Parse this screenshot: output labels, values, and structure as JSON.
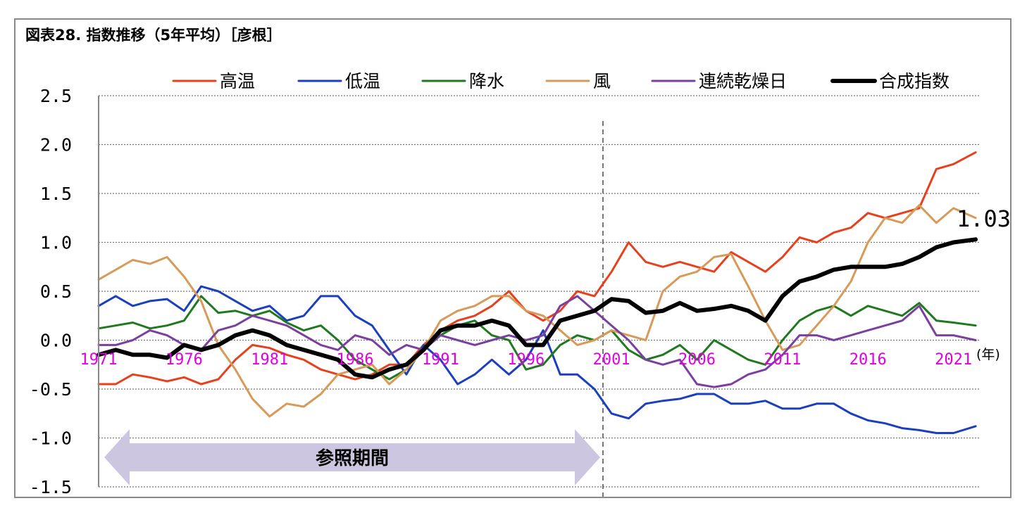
{
  "chart_data": {
    "type": "line",
    "title": "図表28. 指数推移（5年平均）［彦根］",
    "xlabel": "(年)",
    "ylabel": "",
    "ylim": [
      -1.5,
      2.5
    ],
    "xlim": [
      1971,
      2022.5
    ],
    "yticks": [
      "2.5",
      "2.0",
      "1.5",
      "1.0",
      "0.5",
      "0.0",
      "-0.5",
      "-1.0",
      "-1.5"
    ],
    "xticks": [
      "1971",
      "1976",
      "1981",
      "1986",
      "1991",
      "1996",
      "2001",
      "2006",
      "2011",
      "2016",
      "2021"
    ],
    "grid": true,
    "legend_position": "top",
    "reference_period": {
      "label": "参照期間",
      "start": 1971,
      "end": 2000.5
    },
    "divider_year": 2000.5,
    "end_label": {
      "text": "1.03",
      "series": "合成指数"
    },
    "series": [
      {
        "name": "高温",
        "color": "#e8401c",
        "width": 3,
        "x": [
          1971,
          1972,
          1973,
          1974,
          1975,
          1976,
          1977,
          1978,
          1979,
          1980,
          1981,
          1982,
          1983,
          1984,
          1985,
          1986,
          1987,
          1988,
          1989,
          1990,
          1991,
          1992,
          1993,
          1994,
          1995,
          1996,
          1997,
          1998,
          1999,
          2000,
          2001,
          2002,
          2003,
          2004,
          2005,
          2006,
          2007,
          2008,
          2009,
          2010,
          2011,
          2012,
          2013,
          2014,
          2015,
          2016,
          2017,
          2018,
          2019,
          2020,
          2021,
          2022.3
        ],
        "y": [
          -0.45,
          -0.45,
          -0.35,
          -0.38,
          -0.42,
          -0.38,
          -0.45,
          -0.4,
          -0.2,
          -0.05,
          -0.08,
          -0.15,
          -0.2,
          -0.3,
          -0.35,
          -0.4,
          -0.35,
          -0.25,
          -0.25,
          -0.05,
          0.1,
          0.2,
          0.25,
          0.35,
          0.5,
          0.3,
          0.2,
          0.3,
          0.5,
          0.45,
          0.7,
          1.0,
          0.8,
          0.75,
          0.8,
          0.75,
          0.7,
          0.9,
          0.8,
          0.7,
          0.85,
          1.05,
          1.0,
          1.1,
          1.15,
          1.3,
          1.25,
          1.3,
          1.35,
          1.75,
          1.8,
          1.92
        ]
      },
      {
        "name": "低温",
        "color": "#1a3fbf",
        "width": 3,
        "x": [
          1971,
          1972,
          1973,
          1974,
          1975,
          1976,
          1977,
          1978,
          1979,
          1980,
          1981,
          1982,
          1983,
          1984,
          1985,
          1986,
          1987,
          1988,
          1989,
          1990,
          1991,
          1992,
          1993,
          1994,
          1995,
          1996,
          1997,
          1998,
          1999,
          2000,
          2001,
          2002,
          2003,
          2004,
          2005,
          2006,
          2007,
          2008,
          2009,
          2010,
          2011,
          2012,
          2013,
          2014,
          2015,
          2016,
          2017,
          2018,
          2019,
          2020,
          2021,
          2022.3
        ],
        "y": [
          0.35,
          0.45,
          0.35,
          0.4,
          0.42,
          0.3,
          0.55,
          0.5,
          0.4,
          0.3,
          0.35,
          0.2,
          0.25,
          0.45,
          0.45,
          0.25,
          0.15,
          -0.1,
          -0.35,
          -0.05,
          -0.2,
          -0.45,
          -0.35,
          -0.2,
          -0.35,
          -0.2,
          0.1,
          -0.35,
          -0.35,
          -0.5,
          -0.75,
          -0.8,
          -0.65,
          -0.62,
          -0.6,
          -0.55,
          -0.55,
          -0.65,
          -0.65,
          -0.62,
          -0.7,
          -0.7,
          -0.65,
          -0.65,
          -0.75,
          -0.82,
          -0.85,
          -0.9,
          -0.92,
          -0.95,
          -0.95,
          -0.88
        ]
      },
      {
        "name": "降水",
        "color": "#1f7a1f",
        "width": 3,
        "x": [
          1971,
          1972,
          1973,
          1974,
          1975,
          1976,
          1977,
          1978,
          1979,
          1980,
          1981,
          1982,
          1983,
          1984,
          1985,
          1986,
          1987,
          1988,
          1989,
          1990,
          1991,
          1992,
          1993,
          1994,
          1995,
          1996,
          1997,
          1998,
          1999,
          2000,
          2001,
          2002,
          2003,
          2004,
          2005,
          2006,
          2007,
          2008,
          2009,
          2010,
          2011,
          2012,
          2013,
          2014,
          2015,
          2016,
          2017,
          2018,
          2019,
          2020,
          2021,
          2022.3
        ],
        "y": [
          0.12,
          0.15,
          0.18,
          0.12,
          0.15,
          0.2,
          0.45,
          0.28,
          0.3,
          0.25,
          0.3,
          0.18,
          0.1,
          0.15,
          0.0,
          -0.2,
          -0.3,
          -0.4,
          -0.3,
          -0.1,
          0.05,
          0.15,
          0.2,
          0.05,
          0.0,
          -0.3,
          -0.25,
          -0.05,
          0.05,
          0.0,
          0.1,
          -0.1,
          -0.2,
          -0.15,
          -0.05,
          -0.2,
          0.0,
          -0.1,
          -0.2,
          -0.25,
          0.0,
          0.2,
          0.3,
          0.35,
          0.25,
          0.35,
          0.3,
          0.25,
          0.38,
          0.2,
          0.18,
          0.15
        ]
      },
      {
        "name": "風",
        "color": "#d89a58",
        "width": 3,
        "x": [
          1971,
          1972,
          1973,
          1974,
          1975,
          1976,
          1977,
          1978,
          1979,
          1980,
          1981,
          1982,
          1983,
          1984,
          1985,
          1986,
          1987,
          1988,
          1989,
          1990,
          1991,
          1992,
          1993,
          1994,
          1995,
          1996,
          1997,
          1998,
          1999,
          2000,
          2001,
          2002,
          2003,
          2004,
          2005,
          2006,
          2007,
          2008,
          2009,
          2010,
          2011,
          2012,
          2013,
          2014,
          2015,
          2016,
          2017,
          2018,
          2019,
          2020,
          2021,
          2022.3
        ],
        "y": [
          0.62,
          0.72,
          0.82,
          0.78,
          0.85,
          0.65,
          0.4,
          -0.05,
          -0.3,
          -0.6,
          -0.78,
          -0.65,
          -0.68,
          -0.55,
          -0.35,
          -0.3,
          -0.25,
          -0.45,
          -0.3,
          -0.1,
          0.2,
          0.3,
          0.35,
          0.45,
          0.45,
          0.3,
          0.25,
          0.1,
          -0.05,
          0.0,
          0.1,
          0.05,
          0.0,
          0.5,
          0.65,
          0.7,
          0.85,
          0.88,
          0.55,
          0.2,
          -0.1,
          -0.05,
          0.15,
          0.35,
          0.6,
          1.0,
          1.25,
          1.2,
          1.38,
          1.2,
          1.35,
          1.25
        ]
      },
      {
        "name": "連続乾燥日",
        "color": "#7b3fa0",
        "width": 3,
        "x": [
          1971,
          1972,
          1973,
          1974,
          1975,
          1976,
          1977,
          1978,
          1979,
          1980,
          1981,
          1982,
          1983,
          1984,
          1985,
          1986,
          1987,
          1988,
          1989,
          1990,
          1991,
          1992,
          1993,
          1994,
          1995,
          1996,
          1997,
          1998,
          1999,
          2000,
          2001,
          2002,
          2003,
          2004,
          2005,
          2006,
          2007,
          2008,
          2009,
          2010,
          2011,
          2012,
          2013,
          2014,
          2015,
          2016,
          2017,
          2018,
          2019,
          2020,
          2021,
          2022.3
        ],
        "y": [
          -0.05,
          -0.05,
          0.0,
          0.1,
          0.05,
          -0.05,
          -0.1,
          0.1,
          0.15,
          0.25,
          0.2,
          0.15,
          0.05,
          -0.05,
          -0.1,
          0.05,
          0.0,
          -0.15,
          -0.05,
          -0.1,
          0.05,
          0.0,
          -0.05,
          0.0,
          0.05,
          0.0,
          0.05,
          0.35,
          0.45,
          0.3,
          0.15,
          0.0,
          -0.2,
          -0.25,
          -0.2,
          -0.45,
          -0.48,
          -0.45,
          -0.35,
          -0.3,
          -0.15,
          0.05,
          0.05,
          0.0,
          0.05,
          0.1,
          0.15,
          0.2,
          0.35,
          0.05,
          0.05,
          0.0
        ]
      },
      {
        "name": "合成指数",
        "color": "#000000",
        "width": 6,
        "x": [
          1971,
          1972,
          1973,
          1974,
          1975,
          1976,
          1977,
          1978,
          1979,
          1980,
          1981,
          1982,
          1983,
          1984,
          1985,
          1986,
          1987,
          1988,
          1989,
          1990,
          1991,
          1992,
          1993,
          1994,
          1995,
          1996,
          1997,
          1998,
          1999,
          2000,
          2001,
          2002,
          2003,
          2004,
          2005,
          2006,
          2007,
          2008,
          2009,
          2010,
          2011,
          2012,
          2013,
          2014,
          2015,
          2016,
          2017,
          2018,
          2019,
          2020,
          2021,
          2022.3
        ],
        "y": [
          -0.15,
          -0.1,
          -0.15,
          -0.15,
          -0.18,
          -0.05,
          -0.1,
          -0.05,
          0.05,
          0.1,
          0.05,
          -0.05,
          -0.1,
          -0.15,
          -0.2,
          -0.35,
          -0.38,
          -0.3,
          -0.25,
          -0.1,
          0.1,
          0.15,
          0.15,
          0.2,
          0.15,
          -0.05,
          -0.05,
          0.2,
          0.25,
          0.3,
          0.42,
          0.4,
          0.28,
          0.3,
          0.38,
          0.3,
          0.32,
          0.35,
          0.3,
          0.2,
          0.45,
          0.6,
          0.65,
          0.72,
          0.75,
          0.75,
          0.75,
          0.78,
          0.85,
          0.95,
          1.0,
          1.03
        ]
      }
    ]
  }
}
